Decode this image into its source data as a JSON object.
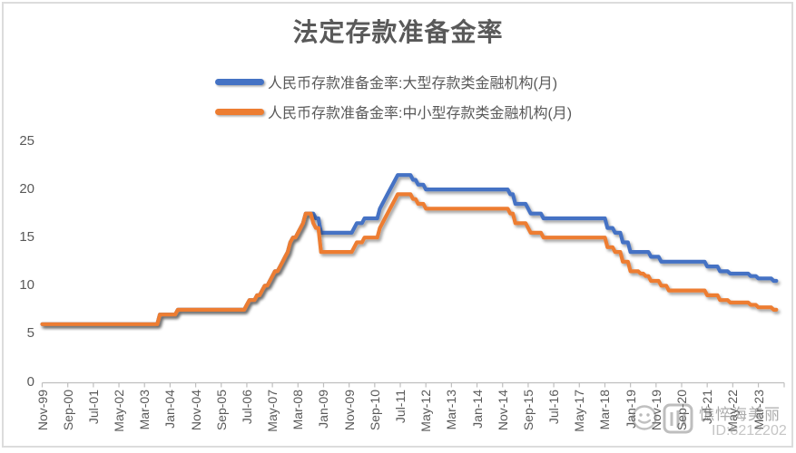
{
  "chart_data": {
    "type": "line",
    "title": "法定存款准备金率",
    "grid": false,
    "legend_position": "top-center",
    "style": {
      "title_color": "#595959",
      "text_color": "#595959",
      "axis_color": "#BFBFBF",
      "background": "#FFFFFF"
    },
    "x_axis": {
      "start": "1999-11",
      "end": "2023-10",
      "tick_interval_months": 10,
      "tick_labels": [
        "Nov-99",
        "Sep-00",
        "Jul-01",
        "May-02",
        "Mar-03",
        "Jan-04",
        "Nov-04",
        "Sep-05",
        "Jul-06",
        "May-07",
        "Mar-08",
        "Jan-09",
        "Nov-09",
        "Sep-10",
        "Jul-11",
        "May-12",
        "Mar-13",
        "Jan-14",
        "Nov-14",
        "Sep-15",
        "Jul-16",
        "May-17",
        "Mar-18",
        "Jan-19",
        "Nov-19",
        "Sep-20",
        "Jul-21",
        "May-22",
        "Mar-23"
      ]
    },
    "y_axis": {
      "min": 0,
      "max": 25,
      "ticks": [
        0,
        5,
        10,
        15,
        20,
        25
      ]
    },
    "series": [
      {
        "name": "人民币存款准备金率:大型存款类金融机构(月)",
        "color": "#4472C4",
        "changes": [
          [
            "1999-11",
            6
          ],
          [
            "2003-09",
            7
          ],
          [
            "2004-04",
            7.5
          ],
          [
            "2006-07",
            8
          ],
          [
            "2006-08",
            8.5
          ],
          [
            "2006-11",
            9
          ],
          [
            "2007-01",
            9.5
          ],
          [
            "2007-02",
            10
          ],
          [
            "2007-04",
            10.5
          ],
          [
            "2007-05",
            11
          ],
          [
            "2007-06",
            11.5
          ],
          [
            "2007-08",
            12
          ],
          [
            "2007-09",
            12.5
          ],
          [
            "2007-10",
            13
          ],
          [
            "2007-11",
            13.5
          ],
          [
            "2007-12",
            14.5
          ],
          [
            "2008-01",
            15
          ],
          [
            "2008-03",
            15.5
          ],
          [
            "2008-04",
            16
          ],
          [
            "2008-05",
            16.5
          ],
          [
            "2008-06",
            17.5
          ],
          [
            "2008-10",
            17
          ],
          [
            "2008-12",
            15.5
          ],
          [
            "2010-01",
            16
          ],
          [
            "2010-02",
            16.5
          ],
          [
            "2010-05",
            17
          ],
          [
            "2010-11",
            18
          ],
          [
            "2010-12",
            18.5
          ],
          [
            "2011-01",
            19
          ],
          [
            "2011-02",
            19.5
          ],
          [
            "2011-03",
            20
          ],
          [
            "2011-04",
            20.5
          ],
          [
            "2011-05",
            21
          ],
          [
            "2011-06",
            21.5
          ],
          [
            "2011-12",
            21
          ],
          [
            "2012-02",
            20.5
          ],
          [
            "2012-05",
            20
          ],
          [
            "2015-02",
            19.5
          ],
          [
            "2015-04",
            18.5
          ],
          [
            "2015-09",
            18
          ],
          [
            "2015-10",
            17.5
          ],
          [
            "2016-03",
            17
          ],
          [
            "2018-04",
            16
          ],
          [
            "2018-07",
            15.5
          ],
          [
            "2018-10",
            14.5
          ],
          [
            "2019-01",
            13.5
          ],
          [
            "2019-09",
            13
          ],
          [
            "2020-01",
            12.5
          ],
          [
            "2021-07",
            12
          ],
          [
            "2021-12",
            11.5
          ],
          [
            "2022-04",
            11.25
          ],
          [
            "2022-12",
            11
          ],
          [
            "2023-03",
            10.75
          ],
          [
            "2023-09",
            10.5
          ]
        ]
      },
      {
        "name": "人民币存款准备金率:中小型存款类金融机构(月)",
        "color": "#ED7D31",
        "changes": [
          [
            "1999-11",
            6
          ],
          [
            "2003-09",
            7
          ],
          [
            "2004-04",
            7.5
          ],
          [
            "2006-07",
            8
          ],
          [
            "2006-08",
            8.5
          ],
          [
            "2006-11",
            9
          ],
          [
            "2007-01",
            9.5
          ],
          [
            "2007-02",
            10
          ],
          [
            "2007-04",
            10.5
          ],
          [
            "2007-05",
            11
          ],
          [
            "2007-06",
            11.5
          ],
          [
            "2007-08",
            12
          ],
          [
            "2007-09",
            12.5
          ],
          [
            "2007-10",
            13
          ],
          [
            "2007-11",
            13.5
          ],
          [
            "2007-12",
            14.5
          ],
          [
            "2008-01",
            15
          ],
          [
            "2008-03",
            15.5
          ],
          [
            "2008-04",
            16
          ],
          [
            "2008-05",
            16.5
          ],
          [
            "2008-06",
            17.5
          ],
          [
            "2008-09",
            16.5
          ],
          [
            "2008-10",
            16
          ],
          [
            "2008-12",
            13.5
          ],
          [
            "2010-01",
            14
          ],
          [
            "2010-02",
            14.5
          ],
          [
            "2010-05",
            15
          ],
          [
            "2010-11",
            16
          ],
          [
            "2010-12",
            16.5
          ],
          [
            "2011-01",
            17
          ],
          [
            "2011-02",
            17.5
          ],
          [
            "2011-03",
            18
          ],
          [
            "2011-04",
            18.5
          ],
          [
            "2011-05",
            19
          ],
          [
            "2011-06",
            19.5
          ],
          [
            "2011-12",
            19
          ],
          [
            "2012-02",
            18.5
          ],
          [
            "2012-05",
            18
          ],
          [
            "2015-02",
            17.5
          ],
          [
            "2015-04",
            16.5
          ],
          [
            "2015-09",
            16
          ],
          [
            "2015-10",
            15.5
          ],
          [
            "2016-03",
            15
          ],
          [
            "2018-04",
            14
          ],
          [
            "2018-07",
            13.5
          ],
          [
            "2018-10",
            12.5
          ],
          [
            "2019-01",
            11.5
          ],
          [
            "2019-05",
            11.25
          ],
          [
            "2019-07",
            11
          ],
          [
            "2019-09",
            10.5
          ],
          [
            "2020-01",
            10
          ],
          [
            "2020-04",
            9.5
          ],
          [
            "2021-07",
            9
          ],
          [
            "2021-12",
            8.5
          ],
          [
            "2022-04",
            8.25
          ],
          [
            "2022-12",
            8
          ],
          [
            "2023-03",
            7.75
          ],
          [
            "2023-09",
            7.5
          ]
        ]
      }
    ]
  },
  "watermark": {
    "username": "憔悴海美丽",
    "id_text": "ID:8212202"
  }
}
